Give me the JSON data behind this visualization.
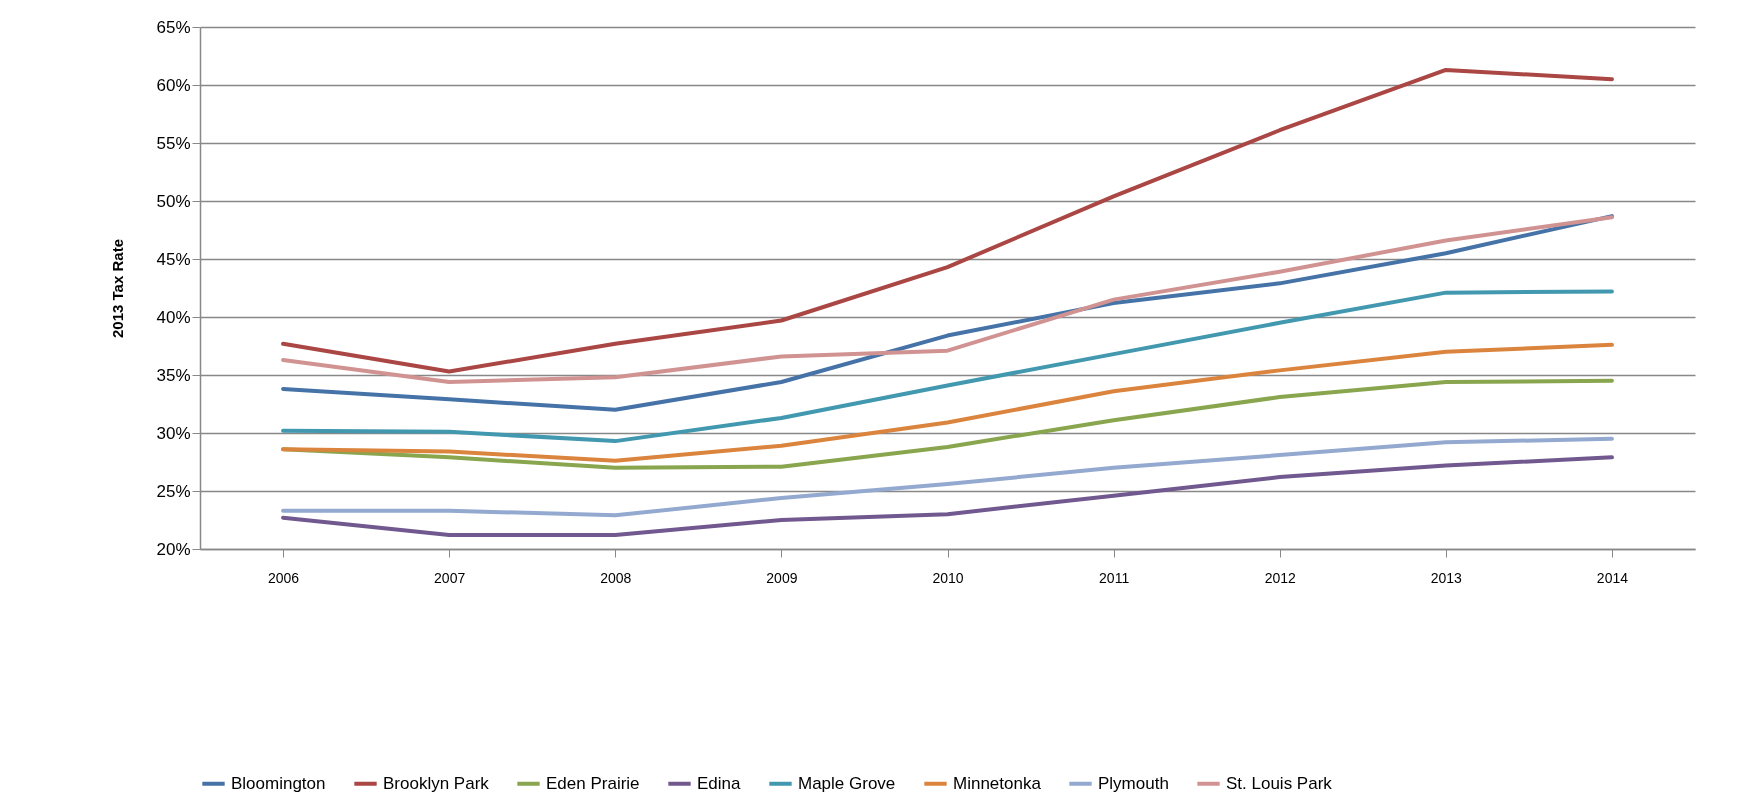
{
  "chart_data": {
    "type": "line",
    "ylabel": "2013 Tax Rate",
    "categories": [
      "2006",
      "2007",
      "2008",
      "2009",
      "2010",
      "2011",
      "2012",
      "2013",
      "2014"
    ],
    "ylim": [
      20,
      65
    ],
    "yticks": [
      {
        "value": 20,
        "label": "20%"
      },
      {
        "value": 25,
        "label": "25%"
      },
      {
        "value": 30,
        "label": "30%"
      },
      {
        "value": 35,
        "label": "35%"
      },
      {
        "value": 40,
        "label": "40%"
      },
      {
        "value": 45,
        "label": "45%"
      },
      {
        "value": 50,
        "label": "50%"
      },
      {
        "value": 55,
        "label": "55%"
      },
      {
        "value": 60,
        "label": "60%"
      },
      {
        "value": 65,
        "label": "65%"
      }
    ],
    "grid": "y",
    "legend": "bottom",
    "marker": "none",
    "line_style": "solid",
    "series": [
      {
        "name": "Bloomington",
        "color": "#4572a7",
        "values": [
          33.8,
          32.9,
          32.0,
          34.4,
          38.4,
          41.2,
          42.9,
          45.5,
          48.7
        ]
      },
      {
        "name": "Brooklyn Park",
        "color": "#aa4643",
        "values": [
          37.7,
          35.3,
          37.7,
          39.7,
          44.3,
          50.4,
          56.1,
          61.3,
          60.5
        ]
      },
      {
        "name": "Eden Prairie",
        "color": "#89a54e",
        "values": [
          28.6,
          27.9,
          27.0,
          27.1,
          28.8,
          31.1,
          33.1,
          34.4,
          34.5
        ]
      },
      {
        "name": "Edina",
        "color": "#71588f",
        "values": [
          22.7,
          21.2,
          21.2,
          22.5,
          23.0,
          24.6,
          26.2,
          27.2,
          27.9
        ]
      },
      {
        "name": "Maple Grove",
        "color": "#4198af",
        "values": [
          30.2,
          30.1,
          29.3,
          31.3,
          34.1,
          36.8,
          39.5,
          42.1,
          42.2
        ]
      },
      {
        "name": "Minnetonka",
        "color": "#db843d",
        "values": [
          28.6,
          28.4,
          27.6,
          28.9,
          30.9,
          33.6,
          35.4,
          37.0,
          37.6
        ]
      },
      {
        "name": "Plymouth",
        "color": "#93a9cf",
        "values": [
          23.3,
          23.3,
          22.9,
          24.4,
          25.6,
          27.0,
          28.1,
          29.2,
          29.5
        ]
      },
      {
        "name": "St. Louis Park",
        "color": "#d19392",
        "values": [
          36.3,
          34.4,
          34.8,
          36.6,
          37.1,
          41.5,
          43.9,
          46.6,
          48.6
        ]
      }
    ]
  }
}
